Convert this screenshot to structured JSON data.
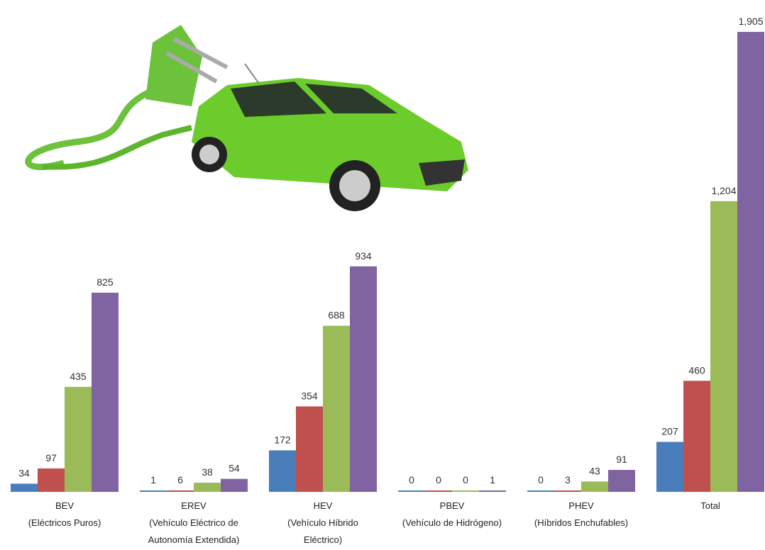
{
  "chart_data": {
    "type": "bar",
    "categories": [
      [
        "BEV",
        "(Eléctricos Puros)"
      ],
      [
        "EREV",
        "(Vehículo Eléctrico de",
        "Autonomía Extendida)"
      ],
      [
        "HEV",
        "(Vehículo Híbrido",
        "Eléctrico)"
      ],
      [
        "PBEV",
        "(Vehículo de Hidrógeno)"
      ],
      [
        "PHEV",
        "(Híbridos Enchufables)"
      ],
      [
        "Total"
      ]
    ],
    "series": [
      {
        "color": "#4a7ebb",
        "values": [
          34,
          1,
          172,
          0,
          0,
          207
        ]
      },
      {
        "color": "#c0504d",
        "values": [
          97,
          6,
          354,
          0,
          3,
          460
        ]
      },
      {
        "color": "#9bbb59",
        "values": [
          435,
          38,
          688,
          0,
          43,
          1204
        ],
        "value_labels": [
          "435",
          "38",
          "688",
          "0",
          "43",
          "1,204"
        ]
      },
      {
        "color": "#8064a2",
        "values": [
          825,
          54,
          934,
          1,
          91,
          1905
        ],
        "value_labels": [
          "825",
          "54",
          "934",
          "1",
          "91",
          "1,905"
        ]
      }
    ]
  }
}
